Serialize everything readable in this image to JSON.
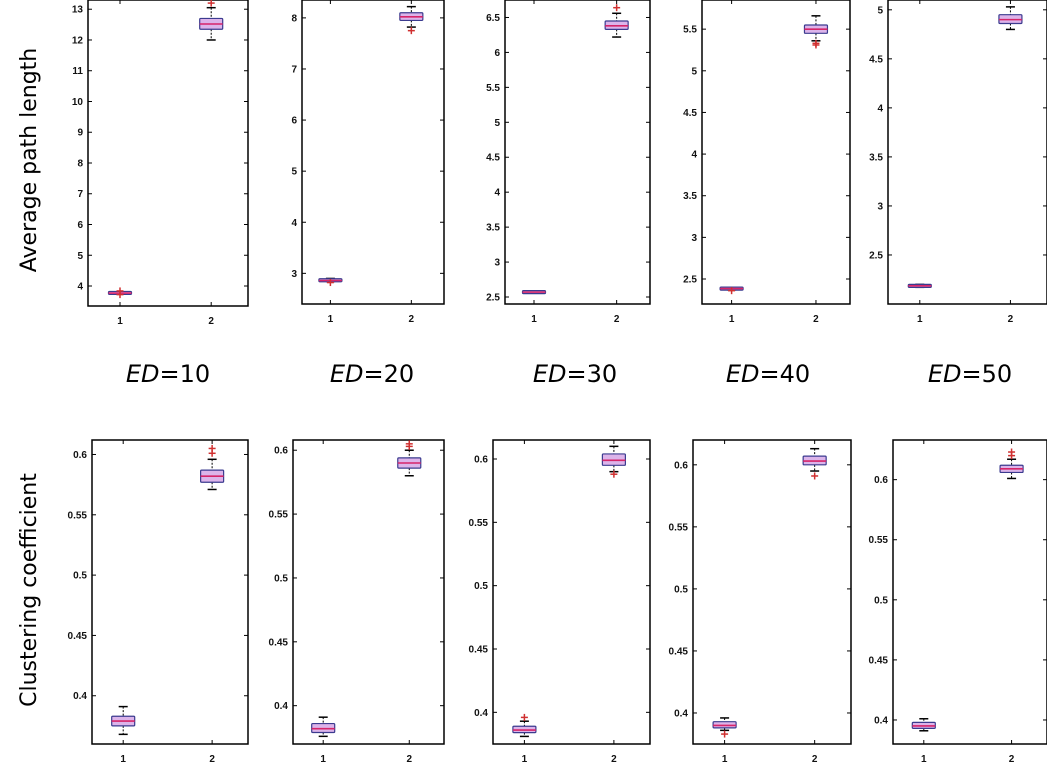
{
  "row_labels": {
    "top": "Average path length",
    "bottom": "Clustering coefficient"
  },
  "ed_labels": [
    {
      "prefix": "ED",
      "suffix": "=10"
    },
    {
      "prefix": "ED",
      "suffix": "=20"
    },
    {
      "prefix": "ED",
      "suffix": "=30"
    },
    {
      "prefix": "ED",
      "suffix": "=40"
    },
    {
      "prefix": "ED",
      "suffix": "=50"
    }
  ],
  "colors": {
    "box_fill": "#dcb4ea",
    "box_edge": "#3b3b8f",
    "median": "#d6256a",
    "outlier": "#d03030",
    "whisker": "#000000",
    "frame": "#000000"
  },
  "chart_data": [
    {
      "type": "box",
      "panel": "Average path length ED=10",
      "ylabel": "Average path length",
      "categories": [
        "1",
        "2"
      ],
      "ylim": [
        3.35,
        13.3
      ],
      "yticks": [
        "4",
        "5",
        "6",
        "7",
        "8",
        "9",
        "10",
        "11",
        "12",
        "13"
      ],
      "boxes": [
        {
          "category": "1",
          "min": 3.74,
          "q1": 3.76,
          "median": 3.77,
          "q3": 3.79,
          "max": 3.81,
          "outliers": [
            3.72,
            3.84
          ]
        },
        {
          "category": "2",
          "min": 12.0,
          "q1": 12.35,
          "median": 12.52,
          "q3": 12.7,
          "max": 13.05,
          "outliers": [
            13.2
          ]
        }
      ]
    },
    {
      "type": "box",
      "panel": "Average path length ED=20",
      "categories": [
        "1",
        "2"
      ],
      "ylim": [
        2.4,
        8.35
      ],
      "yticks": [
        "3",
        "4",
        "5",
        "6",
        "7",
        "8"
      ],
      "boxes": [
        {
          "category": "1",
          "min": 2.84,
          "q1": 2.85,
          "median": 2.86,
          "q3": 2.88,
          "max": 2.9,
          "outliers": [
            2.82
          ]
        },
        {
          "category": "2",
          "min": 7.82,
          "q1": 7.95,
          "median": 8.02,
          "q3": 8.1,
          "max": 8.22,
          "outliers": [
            7.75
          ]
        }
      ]
    },
    {
      "type": "box",
      "panel": "Average path length ED=30",
      "categories": [
        "1",
        "2"
      ],
      "ylim": [
        2.4,
        6.75
      ],
      "yticks": [
        "2.5",
        "3",
        "3.5",
        "4",
        "4.5",
        "5",
        "5.5",
        "6",
        "6.5"
      ],
      "boxes": [
        {
          "category": "1",
          "min": 2.56,
          "q1": 2.565,
          "median": 2.57,
          "q3": 2.575,
          "max": 2.58,
          "outliers": []
        },
        {
          "category": "2",
          "min": 6.22,
          "q1": 6.33,
          "median": 6.38,
          "q3": 6.45,
          "max": 6.56,
          "outliers": [
            6.64
          ]
        }
      ]
    },
    {
      "type": "box",
      "panel": "Average path length ED=40",
      "categories": [
        "1",
        "2"
      ],
      "ylim": [
        2.2,
        5.85
      ],
      "yticks": [
        "2.5",
        "3",
        "3.5",
        "4",
        "4.5",
        "5",
        "5.5"
      ],
      "boxes": [
        {
          "category": "1",
          "min": 2.37,
          "q1": 2.38,
          "median": 2.385,
          "q3": 2.39,
          "max": 2.4,
          "outliers": [
            2.36
          ]
        },
        {
          "category": "2",
          "min": 5.36,
          "q1": 5.45,
          "median": 5.5,
          "q3": 5.55,
          "max": 5.66,
          "outliers": [
            5.31,
            5.33
          ]
        }
      ]
    },
    {
      "type": "box",
      "panel": "Average path length ED=50",
      "categories": [
        "1",
        "2"
      ],
      "ylim": [
        2.0,
        5.1
      ],
      "yticks": [
        "2.5",
        "3",
        "3.5",
        "4",
        "4.5",
        "5"
      ],
      "boxes": [
        {
          "category": "1",
          "min": 2.17,
          "q1": 2.18,
          "median": 2.185,
          "q3": 2.19,
          "max": 2.2,
          "outliers": []
        },
        {
          "category": "2",
          "min": 4.8,
          "q1": 4.86,
          "median": 4.9,
          "q3": 4.95,
          "max": 5.03,
          "outliers": []
        }
      ]
    },
    {
      "type": "box",
      "panel": "Clustering coefficient ED=10",
      "ylabel": "Clustering coefficient",
      "categories": [
        "1",
        "2"
      ],
      "ylim": [
        0.36,
        0.612
      ],
      "yticks": [
        "0.4",
        "0.45",
        "0.5",
        "0.55",
        "0.6"
      ],
      "boxes": [
        {
          "category": "1",
          "min": 0.368,
          "q1": 0.375,
          "median": 0.379,
          "q3": 0.383,
          "max": 0.391,
          "outliers": []
        },
        {
          "category": "2",
          "min": 0.571,
          "q1": 0.577,
          "median": 0.582,
          "q3": 0.587,
          "max": 0.596,
          "outliers": [
            0.601,
            0.605
          ]
        }
      ]
    },
    {
      "type": "box",
      "panel": "Clustering coefficient ED=20",
      "categories": [
        "1",
        "2"
      ],
      "ylim": [
        0.37,
        0.608
      ],
      "yticks": [
        "0.4",
        "0.45",
        "0.5",
        "0.55",
        "0.6"
      ],
      "boxes": [
        {
          "category": "1",
          "min": 0.376,
          "q1": 0.379,
          "median": 0.382,
          "q3": 0.386,
          "max": 0.391,
          "outliers": []
        },
        {
          "category": "2",
          "min": 0.58,
          "q1": 0.586,
          "median": 0.59,
          "q3": 0.594,
          "max": 0.6,
          "outliers": [
            0.603,
            0.605
          ]
        }
      ]
    },
    {
      "type": "box",
      "panel": "Clustering coefficient ED=30",
      "categories": [
        "1",
        "2"
      ],
      "ylim": [
        0.375,
        0.615
      ],
      "yticks": [
        "0.4",
        "0.45",
        "0.5",
        "0.55",
        "0.6"
      ],
      "boxes": [
        {
          "category": "1",
          "min": 0.381,
          "q1": 0.384,
          "median": 0.386,
          "q3": 0.389,
          "max": 0.393,
          "outliers": [
            0.396
          ]
        },
        {
          "category": "2",
          "min": 0.59,
          "q1": 0.595,
          "median": 0.599,
          "q3": 0.604,
          "max": 0.61,
          "outliers": [
            0.588
          ]
        }
      ]
    },
    {
      "type": "box",
      "panel": "Clustering coefficient ED=40",
      "categories": [
        "1",
        "2"
      ],
      "ylim": [
        0.375,
        0.62
      ],
      "yticks": [
        "0.4",
        "0.45",
        "0.5",
        "0.55",
        "0.6"
      ],
      "boxes": [
        {
          "category": "1",
          "min": 0.386,
          "q1": 0.388,
          "median": 0.39,
          "q3": 0.393,
          "max": 0.396,
          "outliers": [
            0.383
          ]
        },
        {
          "category": "2",
          "min": 0.595,
          "q1": 0.6,
          "median": 0.603,
          "q3": 0.607,
          "max": 0.613,
          "outliers": [
            0.591
          ]
        }
      ]
    },
    {
      "type": "box",
      "panel": "Clustering coefficient ED=50",
      "categories": [
        "1",
        "2"
      ],
      "ylim": [
        0.38,
        0.633
      ],
      "yticks": [
        "0.4",
        "0.45",
        "0.5",
        "0.55",
        "0.6"
      ],
      "boxes": [
        {
          "category": "1",
          "min": 0.391,
          "q1": 0.393,
          "median": 0.395,
          "q3": 0.398,
          "max": 0.401,
          "outliers": []
        },
        {
          "category": "2",
          "min": 0.601,
          "q1": 0.606,
          "median": 0.609,
          "q3": 0.612,
          "max": 0.617,
          "outliers": [
            0.62,
            0.623
          ]
        }
      ]
    }
  ]
}
